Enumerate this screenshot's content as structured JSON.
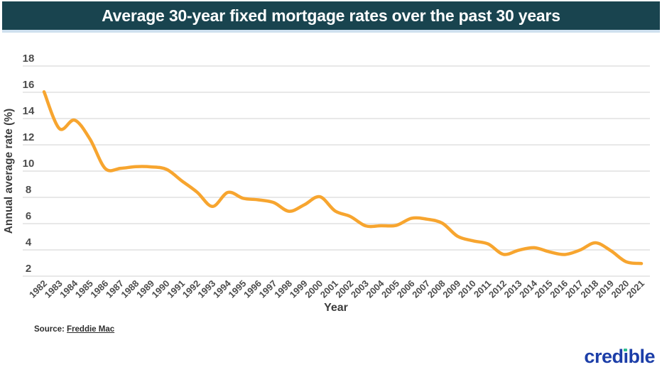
{
  "header": {
    "title": "Average 30-year fixed mortgage rates over the past 30 years"
  },
  "chart_data": {
    "type": "line",
    "title": "Average 30-year fixed mortgage rates over the past 30 years",
    "xlabel": "Year",
    "ylabel": "Annual average rate (%)",
    "x": [
      1982,
      1983,
      1984,
      1985,
      1986,
      1987,
      1988,
      1989,
      1990,
      1991,
      1992,
      1993,
      1994,
      1995,
      1996,
      1997,
      1998,
      1999,
      2000,
      2001,
      2002,
      2003,
      2004,
      2005,
      2006,
      2007,
      2008,
      2009,
      2010,
      2011,
      2012,
      2013,
      2014,
      2015,
      2016,
      2017,
      2018,
      2019,
      2020,
      2021
    ],
    "series": [
      {
        "name": "Average 30-year fixed mortgage rate",
        "values": [
          16.04,
          13.24,
          13.88,
          12.43,
          10.19,
          10.21,
          10.34,
          10.32,
          10.13,
          9.25,
          8.39,
          7.31,
          8.38,
          7.93,
          7.81,
          7.6,
          6.94,
          7.44,
          8.05,
          6.97,
          6.54,
          5.83,
          5.84,
          5.87,
          6.41,
          6.34,
          6.03,
          5.04,
          4.69,
          4.45,
          3.66,
          3.98,
          4.17,
          3.85,
          3.65,
          3.99,
          4.54,
          3.94,
          3.1,
          2.96
        ]
      }
    ],
    "ylim": [
      2,
      18
    ],
    "yticks": [
      18,
      16,
      14,
      12,
      10,
      8,
      6,
      4,
      2
    ],
    "grid": true,
    "legend": false,
    "line_color": "#F7A52F"
  },
  "footer": {
    "source_label": "Source:",
    "source_link": "Freddie Mac",
    "logo_part1": "cred",
    "logo_i": "ı",
    "logo_part2": "ble"
  },
  "colors": {
    "header_bg": "#19444f",
    "header_underline": "#cfe0ef",
    "grid": "#e0e0e0",
    "tick": "#4c4c4c",
    "axis_label": "#3c3c3c",
    "line": "#F7A52F",
    "logo_blue": "#1c3ea8",
    "logo_green": "#2ebd8f"
  }
}
